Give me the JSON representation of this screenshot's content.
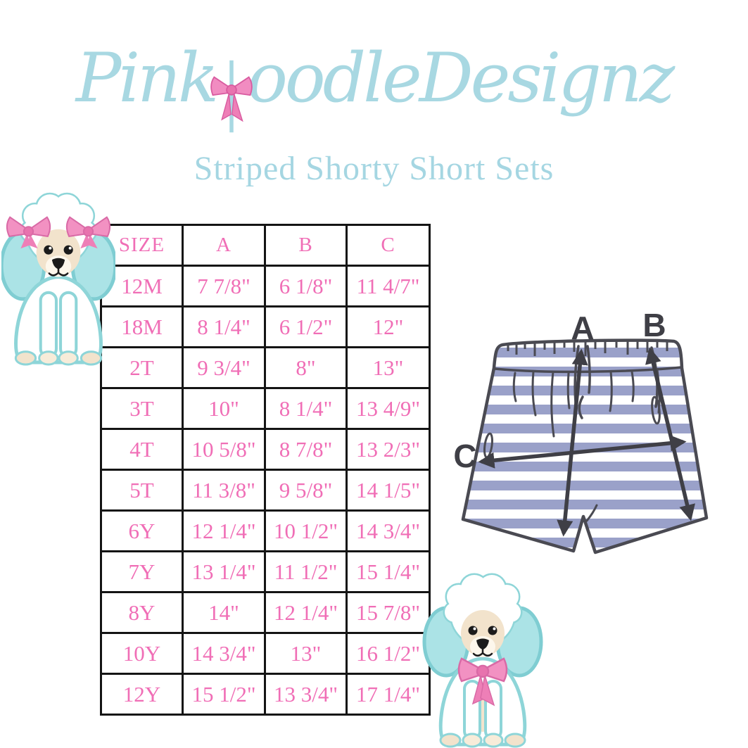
{
  "brand": {
    "name": "Pink Poodle Designz",
    "part1": "Pink",
    "part2": "oodle",
    "part3": "Designz",
    "logo_color": "#a8d8e2",
    "bow_color": "#f18cc1"
  },
  "subtitle": {
    "text": "Striped Shorty Short Sets",
    "color": "#a5d6e2"
  },
  "size_table": {
    "columns": [
      "SIZE",
      "A",
      "B",
      "C"
    ],
    "rows": [
      [
        "12M",
        "7 7/8\"",
        "6 1/8\"",
        "11 4/7\""
      ],
      [
        "18M",
        "8 1/4\"",
        "6 1/2\"",
        "12\""
      ],
      [
        "2T",
        "9 3/4\"",
        "8\"",
        "13\""
      ],
      [
        "3T",
        "10\"",
        "8 1/4\"",
        "13 4/9\""
      ],
      [
        "4T",
        "10 5/8\"",
        "8 7/8\"",
        "13 2/3\""
      ],
      [
        "5T",
        "11 3/8\"",
        "9 5/8\"",
        "14 1/5\""
      ],
      [
        "6Y",
        "12 1/4\"",
        "10 1/2\"",
        "14 3/4\""
      ],
      [
        "7Y",
        "13 1/4\"",
        "11 1/2\"",
        "15 1/4\""
      ],
      [
        "8Y",
        "14\"",
        "12 1/4\"",
        "15 7/8\""
      ],
      [
        "10Y",
        "14 3/4\"",
        "13\"",
        "16 1/2\""
      ],
      [
        "12Y",
        "15 1/2\"",
        "13 3/4\"",
        "17 1/4\""
      ]
    ],
    "text_color": "#f06eb6",
    "border_color": "#141414"
  },
  "diagram": {
    "label_a": "A",
    "label_b": "B",
    "label_c": "C",
    "stripe_color": "#9aa1c9",
    "outline_color": "#4a4a52",
    "arrow_color": "#3f3f46"
  },
  "poodle_colors": {
    "ear_fill": "#abe3e6",
    "outline": "#8ed5d8",
    "face": "#f2e3cc",
    "bow": "#f291c2"
  }
}
